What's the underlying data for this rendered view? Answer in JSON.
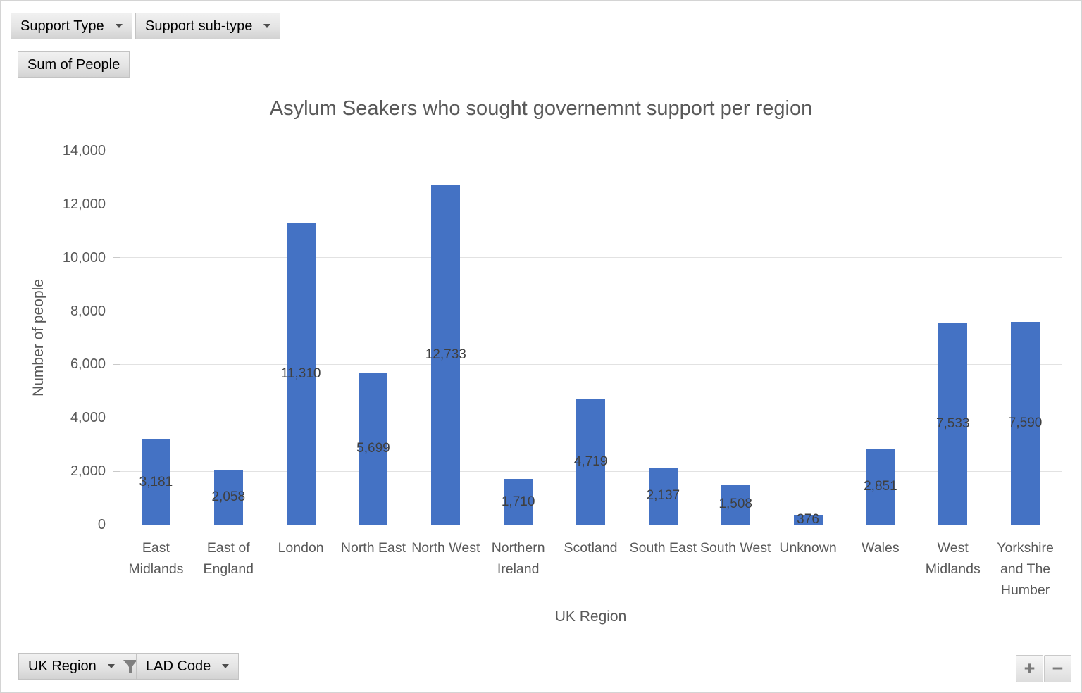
{
  "field_buttons": {
    "support_type": "Support Type",
    "support_subtype": "Support sub-type",
    "sum_of_people": "Sum of People",
    "uk_region": "UK Region",
    "lad_code": "LAD Code",
    "expand": "+",
    "collapse": "−"
  },
  "chart_data": {
    "type": "bar",
    "title": "Asylum Seakers who sought governemnt support per region",
    "xlabel": "UK Region",
    "ylabel": "Number of people",
    "categories": [
      "East Midlands",
      "East of England",
      "London",
      "North East",
      "North West",
      "Northern Ireland",
      "Scotland",
      "South East",
      "South West",
      "Unknown",
      "Wales",
      "West Midlands",
      "Yorkshire and The Humber"
    ],
    "values": [
      3181,
      2058,
      11310,
      5699,
      12733,
      1710,
      4719,
      2137,
      1508,
      376,
      2851,
      7533,
      7590
    ],
    "data_labels": [
      "3,181",
      "2,058",
      "11,310",
      "5,699",
      "12,733",
      "1,710",
      "4,719",
      "2,137",
      "1,508",
      "376",
      "2,851",
      "7,533",
      "7,590"
    ],
    "data_label_position": "center",
    "ylim": [
      0,
      14000
    ],
    "ytick_step": 2000,
    "ytick_labels": [
      "0",
      "2,000",
      "4,000",
      "6,000",
      "8,000",
      "10,000",
      "12,000",
      "14,000"
    ],
    "grid": true,
    "legend": "none",
    "bar_color": "#4472C4"
  }
}
